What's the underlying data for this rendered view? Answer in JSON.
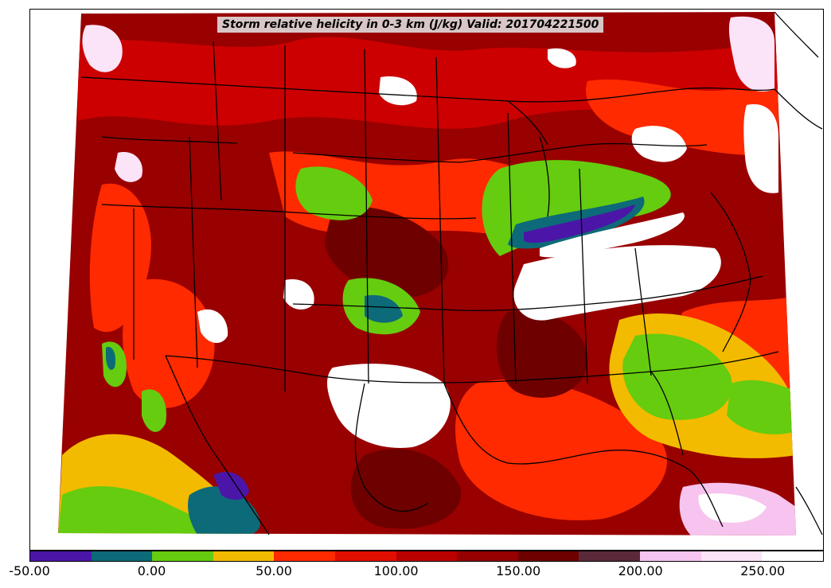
{
  "title": "Storm relative helicity in 0-3 km (J/kg) Valid: 201704221500",
  "colorbar": {
    "ticks": [
      "-50.00",
      "0.00",
      "50.00",
      "100.00",
      "150.00",
      "200.00",
      "250.00"
    ],
    "tick_values": [
      -50,
      0,
      50,
      100,
      150,
      200,
      250
    ],
    "range": [
      -50,
      275
    ],
    "bins": [
      {
        "from": -50,
        "to": -25,
        "color": "#4b16a8"
      },
      {
        "from": -25,
        "to": 0,
        "color": "#0d6a78"
      },
      {
        "from": 0,
        "to": 25,
        "color": "#66cc0f"
      },
      {
        "from": 25,
        "to": 50,
        "color": "#f2bb00"
      },
      {
        "from": 50,
        "to": 75,
        "color": "#ff2a00"
      },
      {
        "from": 75,
        "to": 100,
        "color": "#e00f00"
      },
      {
        "from": 100,
        "to": 125,
        "color": "#bb0000"
      },
      {
        "from": 125,
        "to": 150,
        "color": "#960000"
      },
      {
        "from": 150,
        "to": 175,
        "color": "#6e0000"
      },
      {
        "from": 175,
        "to": 200,
        "color": "#5a2a3a"
      },
      {
        "from": 200,
        "to": 225,
        "color": "#f6c4ee"
      },
      {
        "from": 225,
        "to": 250,
        "color": "#fbe3f8"
      },
      {
        "from": 250,
        "to": 275,
        "color": "#ffffff"
      }
    ]
  }
}
